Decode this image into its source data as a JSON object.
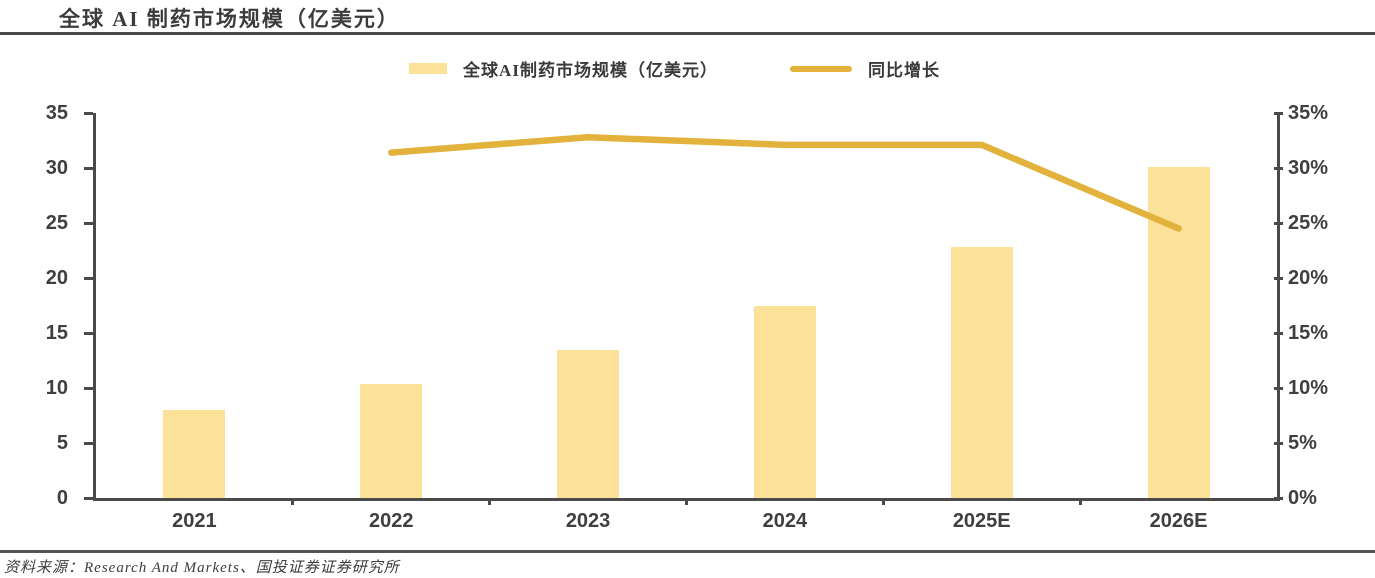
{
  "title": "全球 AI 制药市场规模（亿美元）",
  "source": "资料来源：Research And Markets、国投证券证券研究所",
  "colors": {
    "bar": "#FCE299",
    "line": "#E2B23C",
    "axis": "#4A4A4A",
    "text": "#3B3B3B"
  },
  "legend": {
    "bar_label": "全球AI制药市场规模（亿美元）",
    "line_label": "同比增长"
  },
  "chart_data": {
    "type": "bar",
    "subtype": "bar+line-combo",
    "title": "全球 AI 制药市场规模（亿美元）",
    "categories": [
      "2021",
      "2022",
      "2023",
      "2024",
      "2025E",
      "2026E"
    ],
    "series": [
      {
        "name": "全球AI制药市场规模（亿美元）",
        "type": "bar",
        "axis": "left",
        "color": "#FCE299",
        "values": [
          8.0,
          10.4,
          13.5,
          17.5,
          22.8,
          30.1
        ]
      },
      {
        "name": "同比增长",
        "type": "line",
        "axis": "right",
        "color": "#E2B23C",
        "values": [
          null,
          31.4,
          32.8,
          32.1,
          32.1,
          24.5
        ],
        "unit": "%"
      }
    ],
    "left_axis": {
      "min": 0,
      "max": 35,
      "step": 5,
      "tick_labels": [
        "0",
        "5",
        "10",
        "15",
        "20",
        "25",
        "30",
        "35"
      ]
    },
    "right_axis": {
      "min": 0,
      "max": 35,
      "step": 5,
      "tick_labels": [
        "0%",
        "5%",
        "10%",
        "15%",
        "20%",
        "25%",
        "30%",
        "35%"
      ]
    },
    "grid": false,
    "legend_position": "top-center",
    "xlabel": "",
    "ylabel": ""
  }
}
